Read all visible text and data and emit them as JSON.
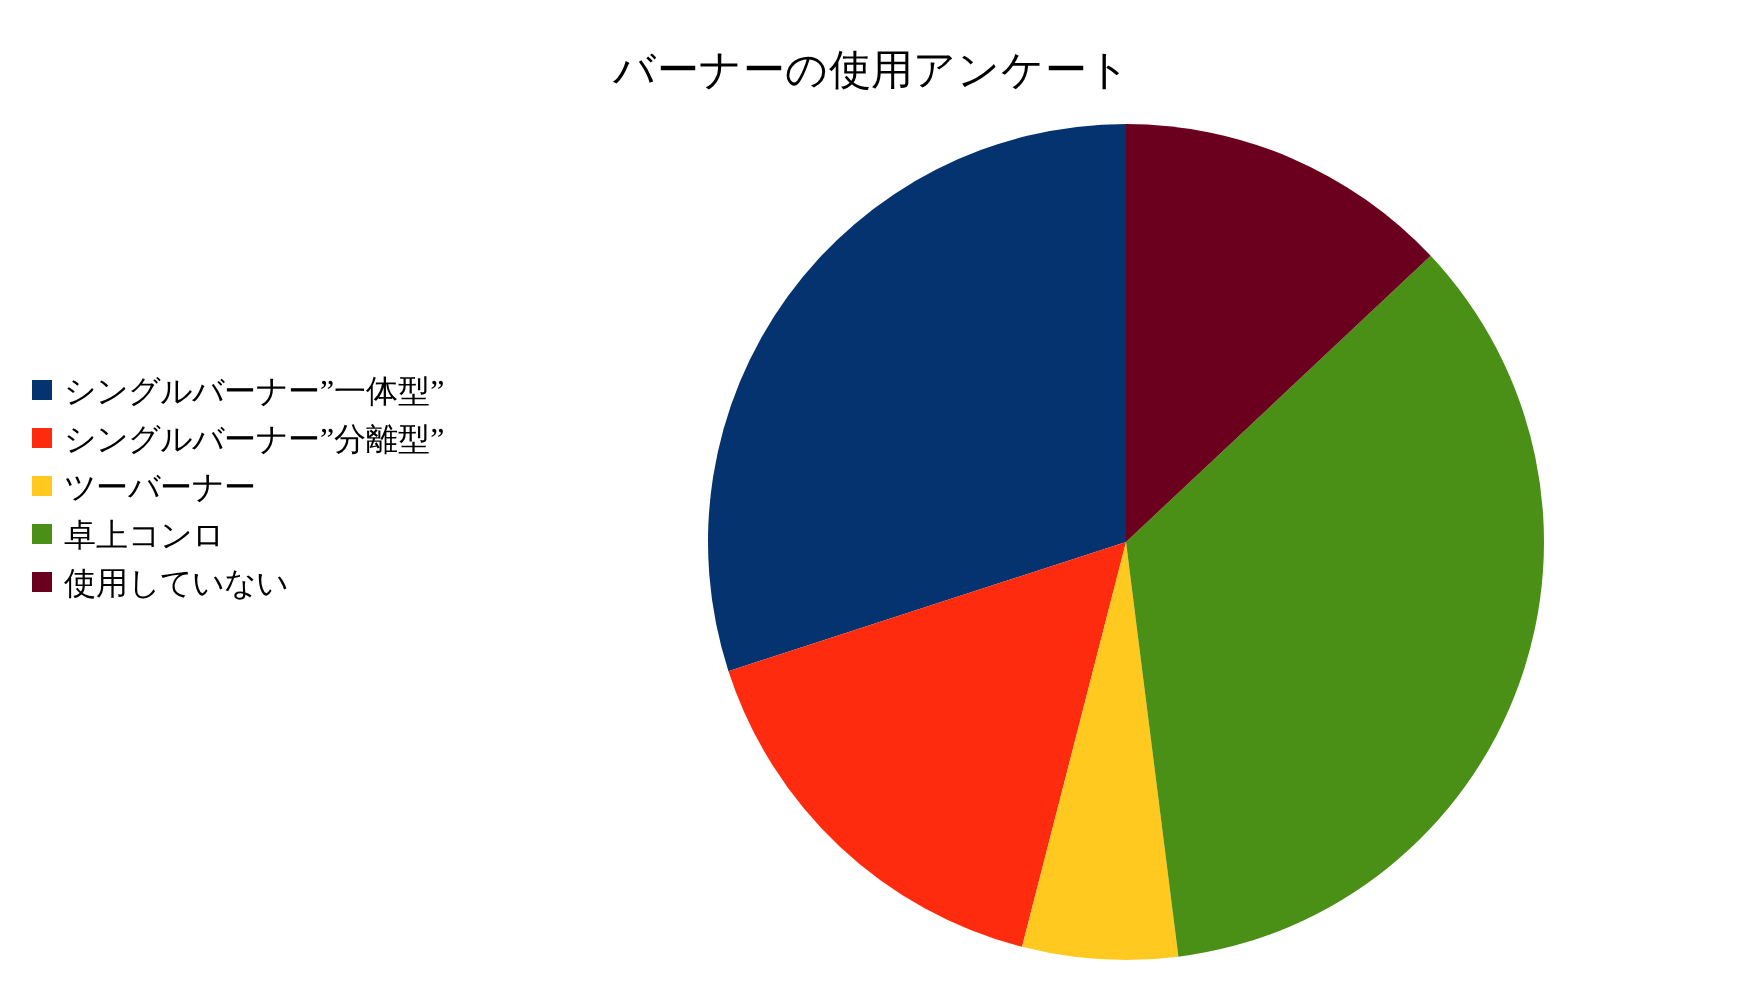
{
  "chart_data": {
    "type": "pie",
    "title": "バーナーの使用アンケート",
    "categories": [
      "シングルバーナー”一体型”",
      "シングルバーナー”分離型”",
      "ツーバーナー",
      "卓上コンロ",
      "使用していない"
    ],
    "values": [
      30,
      16,
      6,
      35,
      13
    ],
    "colors": [
      "#04336f",
      "#ff2b0f",
      "#ffc91f",
      "#4a8f16",
      "#6b001e"
    ],
    "legend": "left"
  }
}
